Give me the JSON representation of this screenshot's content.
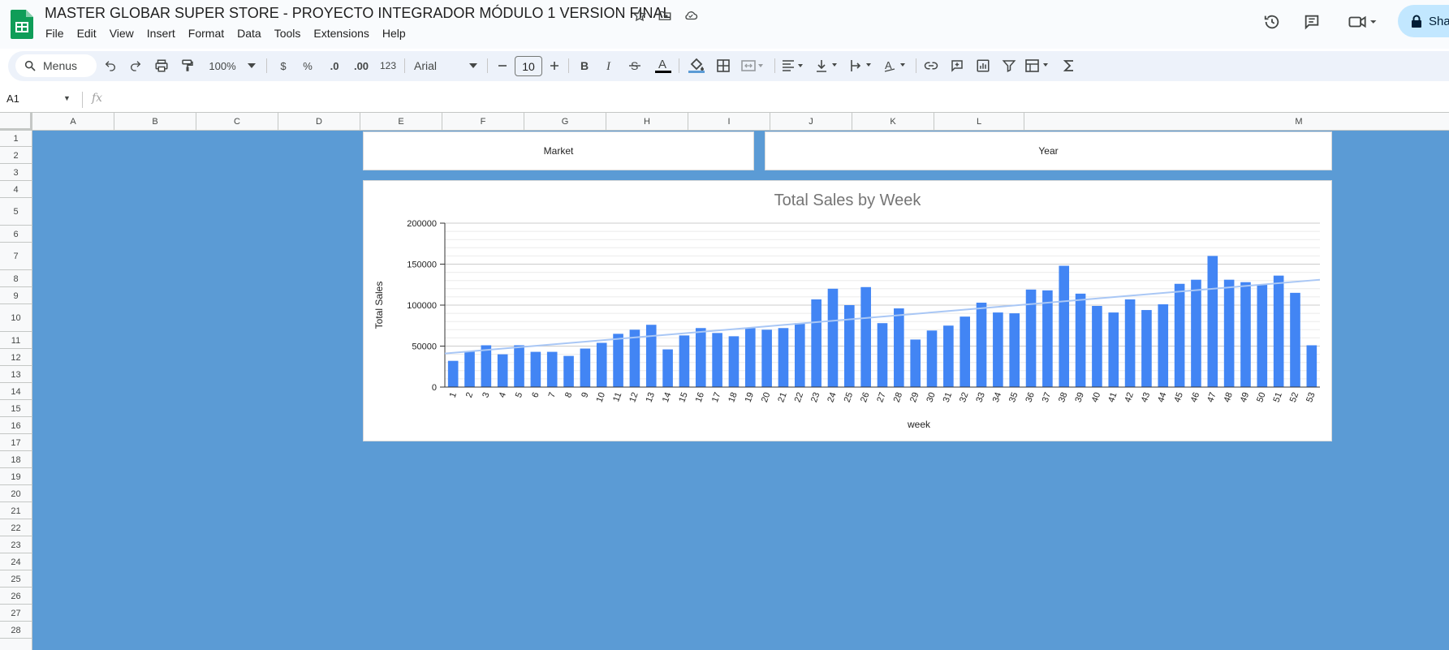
{
  "app": {
    "title": "MASTER GLOBAR SUPER STORE - PROYECTO INTEGRADOR MÓDULO 1 VERSION FINAL",
    "share_label": "Sha",
    "menu": [
      "File",
      "Edit",
      "View",
      "Insert",
      "Format",
      "Data",
      "Tools",
      "Extensions",
      "Help"
    ]
  },
  "toolbar": {
    "search_label": "Menus",
    "zoom": "100%",
    "currency": "$",
    "percent": "%",
    "dec_decrease": ".0",
    "dec_increase": ".00",
    "number_format": "123",
    "font": "Arial",
    "font_size": "10"
  },
  "formula_bar": {
    "cell_ref": "A1",
    "fx": "fx"
  },
  "columns": [
    "A",
    "B",
    "C",
    "D",
    "E",
    "F",
    "G",
    "H",
    "I",
    "J",
    "K",
    "L",
    "M"
  ],
  "rows": [
    "1",
    "2",
    "3",
    "4",
    "5",
    "6",
    "7",
    "8",
    "9",
    "10",
    "11",
    "12",
    "13",
    "14",
    "15",
    "16",
    "17",
    "18",
    "19",
    "20",
    "21",
    "22",
    "23",
    "24",
    "25",
    "26",
    "27",
    "28"
  ],
  "slicers": {
    "market": "Market",
    "year": "Year"
  },
  "colors": {
    "sheet_bg": "#5b9bd5",
    "bar": "#4285f4",
    "trend": "#a9c7f5",
    "title": "#757575"
  },
  "chart_data": {
    "type": "bar",
    "title": "Total Sales by Week",
    "xlabel": "week",
    "ylabel": "Total Sales",
    "ylim": [
      0,
      200000
    ],
    "yticks": [
      "0",
      "50000",
      "100000",
      "150000",
      "200000"
    ],
    "categories": [
      "1",
      "2",
      "3",
      "4",
      "5",
      "6",
      "7",
      "8",
      "9",
      "10",
      "11",
      "12",
      "13",
      "14",
      "15",
      "16",
      "17",
      "18",
      "19",
      "20",
      "21",
      "22",
      "23",
      "24",
      "25",
      "26",
      "27",
      "28",
      "29",
      "30",
      "31",
      "32",
      "33",
      "34",
      "35",
      "36",
      "37",
      "38",
      "39",
      "40",
      "41",
      "42",
      "43",
      "44",
      "45",
      "46",
      "47",
      "48",
      "49",
      "50",
      "51",
      "52",
      "53"
    ],
    "values": [
      32000,
      44000,
      51000,
      40000,
      51000,
      43000,
      43000,
      38000,
      47000,
      54000,
      65000,
      70000,
      76000,
      46000,
      63000,
      72000,
      66000,
      62000,
      72000,
      70000,
      72000,
      78000,
      107000,
      120000,
      100000,
      122000,
      78000,
      96000,
      58000,
      69000,
      75000,
      86000,
      103000,
      91000,
      90000,
      119000,
      118000,
      148000,
      114000,
      99000,
      91000,
      107000,
      94000,
      101000,
      126000,
      131000,
      160000,
      131000,
      128000,
      125000,
      136000,
      115000,
      51000
    ],
    "trendline": {
      "start": 41000,
      "end": 131000
    },
    "grid": true,
    "legend": "none"
  }
}
